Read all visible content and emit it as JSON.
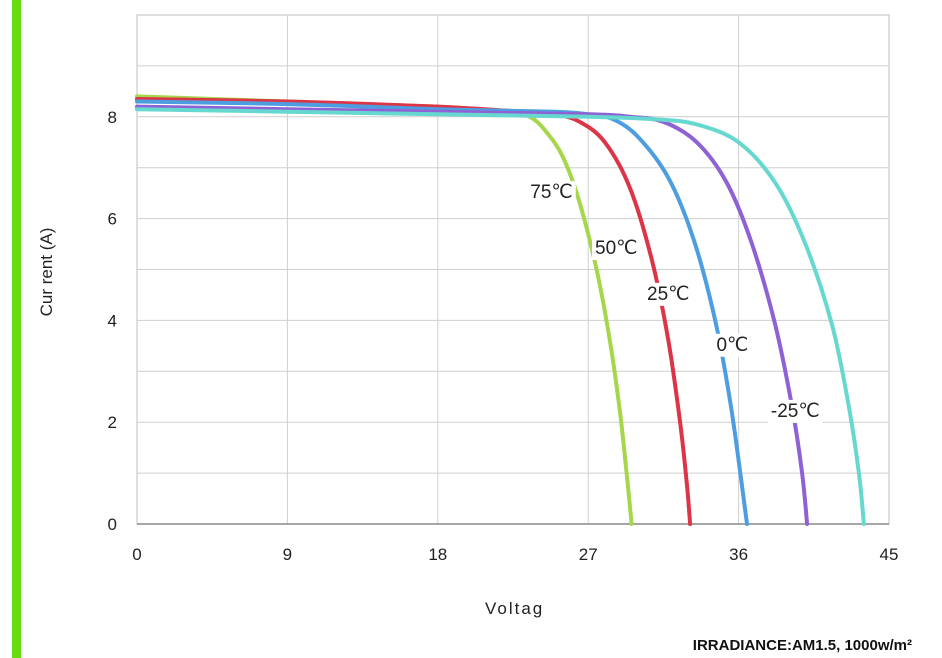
{
  "accent_color": "#66dd11",
  "chart_data": {
    "type": "line",
    "title": "",
    "xlabel": "Voltag",
    "ylabel": "Cur rent (A)",
    "footnote": "IRRADIANCE:AM1.5, 1000w/m²",
    "xlim": [
      0,
      45
    ],
    "ylim": [
      0,
      10
    ],
    "xticks": [
      0,
      9,
      18,
      27,
      36,
      45
    ],
    "yticks": [
      0,
      2,
      4,
      6,
      8
    ],
    "grid": true,
    "series": [
      {
        "name": "75℃",
        "color": "#a6d64a",
        "x": [
          0,
          9,
          18,
          22,
          23.5,
          24.5,
          25.5,
          26.5,
          27.5,
          28.3,
          28.9,
          29.3,
          29.6
        ],
        "y": [
          8.4,
          8.3,
          8.2,
          8.1,
          8.0,
          7.7,
          7.2,
          6.3,
          5.0,
          3.6,
          2.2,
          1.0,
          0
        ]
      },
      {
        "name": "50℃",
        "color": "#dd3548",
        "x": [
          0,
          9,
          18,
          23,
          25,
          26.5,
          28,
          29.5,
          30.8,
          31.8,
          32.5,
          32.9,
          33.1
        ],
        "y": [
          8.35,
          8.3,
          8.2,
          8.1,
          8.05,
          7.9,
          7.5,
          6.6,
          5.2,
          3.6,
          2.0,
          0.8,
          0
        ]
      },
      {
        "name": "25℃",
        "color": "#4d9ee0",
        "x": [
          0,
          9,
          18,
          25,
          27,
          28.5,
          30,
          31.8,
          33.3,
          34.6,
          35.5,
          36.1,
          36.5
        ],
        "y": [
          8.3,
          8.25,
          8.15,
          8.1,
          8.05,
          7.95,
          7.6,
          6.8,
          5.6,
          4.0,
          2.4,
          1.0,
          0
        ]
      },
      {
        "name": "0℃",
        "color": "#8e62d4",
        "x": [
          0,
          9,
          18,
          27,
          29.5,
          31.5,
          33.5,
          35.3,
          36.8,
          38.2,
          39.2,
          39.8,
          40.1
        ],
        "y": [
          8.2,
          8.15,
          8.1,
          8.05,
          8.0,
          7.9,
          7.5,
          6.7,
          5.5,
          3.9,
          2.3,
          1.0,
          0
        ]
      },
      {
        "name": "-25℃",
        "color": "#66d8d0",
        "x": [
          0,
          9,
          18,
          27,
          31,
          33.5,
          36,
          38.2,
          40,
          41.6,
          42.6,
          43.2,
          43.5
        ],
        "y": [
          8.15,
          8.1,
          8.05,
          8.0,
          7.95,
          7.85,
          7.5,
          6.7,
          5.5,
          3.9,
          2.3,
          1.0,
          0
        ]
      }
    ]
  }
}
